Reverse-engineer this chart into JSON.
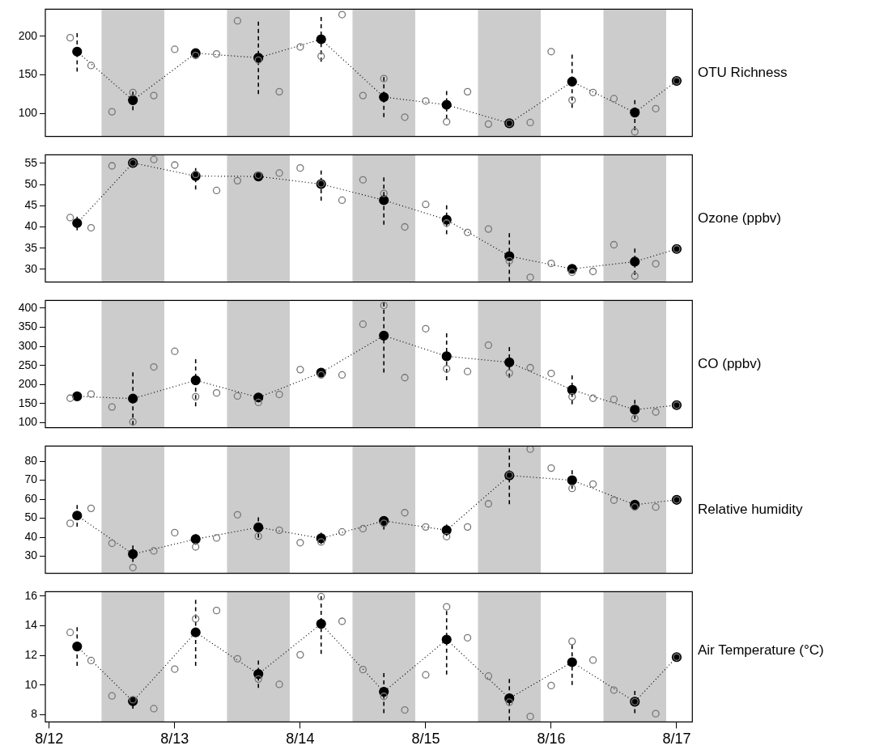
{
  "chart_data": [
    {
      "type": "scatter",
      "ylabel": "OTU Richness",
      "xlim": [
        "--08-11T23:15",
        "--08-17T03:00"
      ],
      "ylim": [
        70,
        235
      ],
      "yticks": [
        100,
        150,
        200
      ],
      "tick_labels": "y",
      "grid": false,
      "legend": false,
      "marker": "circle",
      "bands": [
        {
          "axis": "x",
          "from": "--08-12T10:00",
          "to": "--08-12T22:00",
          "color": "#cccccc"
        },
        {
          "axis": "x",
          "from": "--08-13T10:00",
          "to": "--08-13T22:00",
          "color": "#cccccc"
        },
        {
          "axis": "x",
          "from": "--08-14T10:00",
          "to": "--08-14T22:00",
          "color": "#cccccc"
        },
        {
          "axis": "x",
          "from": "--08-15T10:00",
          "to": "--08-15T22:00",
          "color": "#cccccc"
        },
        {
          "axis": "x",
          "from": "--08-16T10:00",
          "to": "--08-16T22:00",
          "color": "#cccccc"
        }
      ],
      "series": [
        {
          "type": "scatter",
          "color": "#777777",
          "x": [
            "--08-12T04:00",
            "--08-12T08:00",
            "--08-12T12:00",
            "--08-12T16:00",
            "--08-12T20:00",
            "--08-13T00:00",
            "--08-13T04:00",
            "--08-13T08:00",
            "--08-13T12:00",
            "--08-13T16:00",
            "--08-13T20:00",
            "--08-14T00:00",
            "--08-14T04:00",
            "--08-14T08:00",
            "--08-14T12:00",
            "--08-14T16:00",
            "--08-14T20:00",
            "--08-15T00:00",
            "--08-15T04:00",
            "--08-15T08:00",
            "--08-15T12:00",
            "--08-15T16:00",
            "--08-15T20:00",
            "--08-16T00:00",
            "--08-16T04:00",
            "--08-16T08:00",
            "--08-16T12:00",
            "--08-16T16:00",
            "--08-16T20:00",
            "--08-17T00:00"
          ],
          "values": [
            198,
            162,
            102,
            127,
            123,
            183,
            175,
            177,
            220,
            169,
            128,
            186,
            174,
            228,
            123,
            145,
            95,
            116,
            89,
            128,
            86,
            87,
            88,
            180,
            117,
            127,
            119,
            76,
            106,
            142
          ]
        },
        {
          "type": "line",
          "color": "#000000",
          "line_style": "dotted",
          "x": [
            "--08-12T05:20",
            "--08-12T16:00",
            "--08-13T04:00",
            "--08-13T16:00",
            "--08-14T04:00",
            "--08-14T16:00",
            "--08-15T04:00",
            "--08-15T16:00",
            "--08-16T04:00",
            "--08-16T16:00",
            "--08-17T00:00"
          ],
          "values": [
            180,
            117,
            178,
            172,
            196,
            121,
            111,
            87,
            141,
            101,
            142
          ],
          "errors": [
            [
              154,
              204
            ],
            [
              104,
              128
            ],
            null,
            [
              125,
              219
            ],
            [
              167,
              225
            ],
            [
              95,
              147
            ],
            [
              93,
              129
            ],
            null,
            [
              107,
              176
            ],
            [
              78,
              117
            ],
            null
          ]
        }
      ]
    },
    {
      "type": "scatter",
      "ylabel": "Ozone (ppbv)",
      "xlim": [
        "--08-11T23:15",
        "--08-17T03:00"
      ],
      "ylim": [
        27,
        57
      ],
      "yticks": [
        30,
        35,
        40,
        45,
        50,
        55
      ],
      "tick_labels": "y",
      "grid": false,
      "legend": false,
      "marker": "circle",
      "bands": [
        {
          "axis": "x",
          "from": "--08-12T10:00",
          "to": "--08-12T22:00",
          "color": "#cccccc"
        },
        {
          "axis": "x",
          "from": "--08-13T10:00",
          "to": "--08-13T22:00",
          "color": "#cccccc"
        },
        {
          "axis": "x",
          "from": "--08-14T10:00",
          "to": "--08-14T22:00",
          "color": "#cccccc"
        },
        {
          "axis": "x",
          "from": "--08-15T10:00",
          "to": "--08-15T22:00",
          "color": "#cccccc"
        },
        {
          "axis": "x",
          "from": "--08-16T10:00",
          "to": "--08-16T22:00",
          "color": "#cccccc"
        }
      ],
      "series": [
        {
          "type": "scatter",
          "color": "#777777",
          "x": [
            "--08-12T04:00",
            "--08-12T08:00",
            "--08-12T12:00",
            "--08-12T16:00",
            "--08-12T20:00",
            "--08-13T00:00",
            "--08-13T04:00",
            "--08-13T08:00",
            "--08-13T12:00",
            "--08-13T16:00",
            "--08-13T20:00",
            "--08-14T00:00",
            "--08-14T04:00",
            "--08-14T08:00",
            "--08-14T12:00",
            "--08-14T16:00",
            "--08-14T20:00",
            "--08-15T00:00",
            "--08-15T04:00",
            "--08-15T08:00",
            "--08-15T12:00",
            "--08-15T16:00",
            "--08-15T20:00",
            "--08-16T00:00",
            "--08-16T04:00",
            "--08-16T08:00",
            "--08-16T12:00",
            "--08-16T16:00",
            "--08-16T20:00",
            "--08-17T00:00"
          ],
          "values": [
            42.2,
            39.8,
            54.4,
            55.1,
            55.9,
            54.6,
            52.4,
            48.6,
            50.9,
            52.2,
            52.7,
            53.9,
            50.2,
            46.3,
            51.1,
            47.9,
            40,
            45.3,
            40.9,
            38.7,
            39.5,
            32,
            28.1,
            31.4,
            29.3,
            29.5,
            35.8,
            28.4,
            31.3,
            34.8
          ]
        },
        {
          "type": "line",
          "color": "#000000",
          "line_style": "dotted",
          "x": [
            "--08-12T05:20",
            "--08-12T16:00",
            "--08-13T04:00",
            "--08-13T16:00",
            "--08-14T04:00",
            "--08-14T16:00",
            "--08-15T04:00",
            "--08-15T16:00",
            "--08-16T04:00",
            "--08-16T16:00",
            "--08-17T00:00"
          ],
          "values": [
            40.9,
            55.1,
            52,
            51.9,
            50.1,
            46.3,
            41.7,
            33.1,
            30.1,
            31.8,
            34.8
          ],
          "errors": [
            [
              39.2,
              42.4
            ],
            null,
            [
              48.8,
              53.9
            ],
            null,
            [
              46.2,
              53.3
            ],
            [
              40.5,
              51.7
            ],
            [
              38.3,
              45.1
            ],
            [
              27.2,
              38.5
            ],
            [
              29.4,
              30.9
            ],
            [
              28.7,
              34.9
            ],
            null
          ]
        }
      ]
    },
    {
      "type": "scatter",
      "ylabel": "CO (ppbv)",
      "xlim": [
        "--08-11T23:15",
        "--08-17T03:00"
      ],
      "ylim": [
        87,
        420
      ],
      "yticks": [
        100,
        150,
        200,
        250,
        300,
        350,
        400
      ],
      "tick_labels": "y",
      "grid": false,
      "legend": false,
      "marker": "circle",
      "bands": [
        {
          "axis": "x",
          "from": "--08-12T10:00",
          "to": "--08-12T22:00",
          "color": "#cccccc"
        },
        {
          "axis": "x",
          "from": "--08-13T10:00",
          "to": "--08-13T22:00",
          "color": "#cccccc"
        },
        {
          "axis": "x",
          "from": "--08-14T10:00",
          "to": "--08-14T22:00",
          "color": "#cccccc"
        },
        {
          "axis": "x",
          "from": "--08-15T10:00",
          "to": "--08-15T22:00",
          "color": "#cccccc"
        },
        {
          "axis": "x",
          "from": "--08-16T10:00",
          "to": "--08-16T22:00",
          "color": "#cccccc"
        }
      ],
      "series": [
        {
          "type": "scatter",
          "color": "#777777",
          "x": [
            "--08-12T04:00",
            "--08-12T08:00",
            "--08-12T12:00",
            "--08-12T16:00",
            "--08-12T20:00",
            "--08-13T00:00",
            "--08-13T04:00",
            "--08-13T08:00",
            "--08-13T12:00",
            "--08-13T16:00",
            "--08-13T20:00",
            "--08-14T00:00",
            "--08-14T04:00",
            "--08-14T08:00",
            "--08-14T12:00",
            "--08-14T16:00",
            "--08-14T20:00",
            "--08-15T00:00",
            "--08-15T04:00",
            "--08-15T08:00",
            "--08-15T12:00",
            "--08-15T16:00",
            "--08-15T20:00",
            "--08-16T00:00",
            "--08-16T04:00",
            "--08-16T08:00",
            "--08-16T12:00",
            "--08-16T16:00",
            "--08-16T20:00",
            "--08-17T00:00"
          ],
          "values": [
            164,
            175,
            141,
            102,
            246,
            287,
            168,
            178,
            170,
            153,
            174,
            239,
            225,
            225,
            358,
            407,
            218,
            346,
            241,
            234,
            303,
            230,
            244,
            229,
            168,
            164,
            161,
            111,
            128,
            146
          ]
        },
        {
          "type": "line",
          "color": "#000000",
          "line_style": "dotted",
          "x": [
            "--08-12T05:20",
            "--08-12T16:00",
            "--08-13T04:00",
            "--08-13T16:00",
            "--08-14T04:00",
            "--08-14T16:00",
            "--08-15T04:00",
            "--08-15T16:00",
            "--08-16T04:00",
            "--08-16T16:00",
            "--08-17T00:00"
          ],
          "values": [
            169,
            163,
            211,
            166,
            231,
            328,
            274,
            258,
            186,
            134,
            146
          ],
          "errors": [
            null,
            [
              94,
              232
            ],
            [
              143,
              266
            ],
            null,
            null,
            [
              231,
              415
            ],
            [
              211,
              334
            ],
            [
              218,
              298
            ],
            [
              148,
              224
            ],
            [
              110,
              160
            ],
            null
          ]
        }
      ]
    },
    {
      "type": "scatter",
      "ylabel": "Relative humidity",
      "xlim": [
        "--08-11T23:15",
        "--08-17T03:00"
      ],
      "ylim": [
        21,
        88
      ],
      "yticks": [
        30,
        40,
        50,
        60,
        70,
        80
      ],
      "tick_labels": "y",
      "grid": false,
      "legend": false,
      "marker": "circle",
      "bands": [
        {
          "axis": "x",
          "from": "--08-12T10:00",
          "to": "--08-12T22:00",
          "color": "#cccccc"
        },
        {
          "axis": "x",
          "from": "--08-13T10:00",
          "to": "--08-13T22:00",
          "color": "#cccccc"
        },
        {
          "axis": "x",
          "from": "--08-14T10:00",
          "to": "--08-14T22:00",
          "color": "#cccccc"
        },
        {
          "axis": "x",
          "from": "--08-15T10:00",
          "to": "--08-15T22:00",
          "color": "#cccccc"
        },
        {
          "axis": "x",
          "from": "--08-16T10:00",
          "to": "--08-16T22:00",
          "color": "#cccccc"
        }
      ],
      "series": [
        {
          "type": "scatter",
          "color": "#777777",
          "x": [
            "--08-12T04:00",
            "--08-12T08:00",
            "--08-12T12:00",
            "--08-12T16:00",
            "--08-12T20:00",
            "--08-13T00:00",
            "--08-13T04:00",
            "--08-13T08:00",
            "--08-13T12:00",
            "--08-13T16:00",
            "--08-13T20:00",
            "--08-14T00:00",
            "--08-14T04:00",
            "--08-14T08:00",
            "--08-14T12:00",
            "--08-14T16:00",
            "--08-14T20:00",
            "--08-15T00:00",
            "--08-15T04:00",
            "--08-15T08:00",
            "--08-15T12:00",
            "--08-15T16:00",
            "--08-15T20:00",
            "--08-16T00:00",
            "--08-16T04:00",
            "--08-16T08:00",
            "--08-16T12:00",
            "--08-16T16:00",
            "--08-16T20:00",
            "--08-17T00:00"
          ],
          "values": [
            47.3,
            55.2,
            36.8,
            24,
            32.8,
            42.4,
            34.9,
            39.6,
            51.8,
            40.5,
            43.7,
            37.1,
            37.5,
            42.8,
            44.5,
            47.3,
            52.9,
            45.4,
            40.3,
            45.4,
            57.6,
            72.7,
            86.4,
            76.4,
            65.7,
            68,
            59.5,
            55.9,
            55.9,
            59.7
          ]
        },
        {
          "type": "line",
          "color": "#000000",
          "line_style": "dotted",
          "x": [
            "--08-12T05:20",
            "--08-12T16:00",
            "--08-13T04:00",
            "--08-13T16:00",
            "--08-14T04:00",
            "--08-14T16:00",
            "--08-15T04:00",
            "--08-15T16:00",
            "--08-16T04:00",
            "--08-16T16:00",
            "--08-17T00:00"
          ],
          "values": [
            51.4,
            31.1,
            39,
            45.2,
            39.4,
            48.6,
            43.7,
            72.5,
            70,
            57.1,
            59.7
          ],
          "errors": [
            [
              45.6,
              56.9
            ],
            [
              27,
              35.6
            ],
            [
              36,
              41.5
            ],
            [
              39.8,
              50.5
            ],
            [
              36.4,
              42.4
            ],
            [
              44.1,
              50.3
            ],
            [
              40.7,
              46.7
            ],
            [
              57.4,
              86.8
            ],
            [
              65.5,
              75.3
            ],
            null,
            null
          ]
        }
      ]
    },
    {
      "type": "scatter",
      "ylabel": "Air Temperature (°C)",
      "xlim": [
        "--08-11T23:15",
        "--08-17T03:00"
      ],
      "ylim": [
        7.5,
        16.3
      ],
      "yticks": [
        8,
        10,
        12,
        14,
        16
      ],
      "xticks": [
        {
          "value": "--08-12",
          "label": "8/12"
        },
        {
          "value": "--08-13",
          "label": "8/13"
        },
        {
          "value": "--08-14",
          "label": "8/14"
        },
        {
          "value": "--08-15",
          "label": "8/15"
        },
        {
          "value": "--08-16",
          "label": "8/16"
        },
        {
          "value": "--08-17",
          "label": "8/17"
        }
      ],
      "grid": false,
      "legend": false,
      "marker": "circle",
      "bands": [
        {
          "axis": "x",
          "from": "--08-12T10:00",
          "to": "--08-12T22:00",
          "color": "#cccccc"
        },
        {
          "axis": "x",
          "from": "--08-13T10:00",
          "to": "--08-13T22:00",
          "color": "#cccccc"
        },
        {
          "axis": "x",
          "from": "--08-14T10:00",
          "to": "--08-14T22:00",
          "color": "#cccccc"
        },
        {
          "axis": "x",
          "from": "--08-15T10:00",
          "to": "--08-15T22:00",
          "color": "#cccccc"
        },
        {
          "axis": "x",
          "from": "--08-16T10:00",
          "to": "--08-16T22:00",
          "color": "#cccccc"
        }
      ],
      "series": [
        {
          "type": "scatter",
          "color": "#777777",
          "x": [
            "--08-12T04:00",
            "--08-12T08:00",
            "--08-12T12:00",
            "--08-12T16:00",
            "--08-12T20:00",
            "--08-13T00:00",
            "--08-13T04:00",
            "--08-13T08:00",
            "--08-13T12:00",
            "--08-13T16:00",
            "--08-13T20:00",
            "--08-14T00:00",
            "--08-14T04:00",
            "--08-14T08:00",
            "--08-14T12:00",
            "--08-14T16:00",
            "--08-14T20:00",
            "--08-15T00:00",
            "--08-15T04:00",
            "--08-15T08:00",
            "--08-15T12:00",
            "--08-15T16:00",
            "--08-15T20:00",
            "--08-16T00:00",
            "--08-16T04:00",
            "--08-16T08:00",
            "--08-16T12:00",
            "--08-16T16:00",
            "--08-16T20:00",
            "--08-17T00:00"
          ],
          "values": [
            13.55,
            11.65,
            9.26,
            9,
            8.4,
            11.07,
            14.47,
            15.03,
            11.77,
            10.4,
            10.04,
            12.04,
            15.97,
            14.3,
            11.04,
            9.23,
            8.31,
            10.68,
            15.28,
            13.19,
            10.6,
            8.84,
            7.87,
            9.96,
            12.94,
            11.68,
            9.65,
            8.87,
            8.06,
            11.88
          ]
        },
        {
          "type": "line",
          "color": "#000000",
          "line_style": "dotted",
          "x": [
            "--08-12T05:20",
            "--08-12T16:00",
            "--08-13T04:00",
            "--08-13T16:00",
            "--08-14T04:00",
            "--08-14T16:00",
            "--08-15T04:00",
            "--08-15T16:00",
            "--08-16T04:00",
            "--08-16T16:00",
            "--08-17T00:00"
          ],
          "values": [
            12.6,
            8.9,
            13.55,
            10.74,
            14.13,
            9.54,
            13.07,
            9.1,
            11.54,
            8.87,
            11.88
          ],
          "errors": [
            [
              11.3,
              13.9
            ],
            [
              8.4,
              9.2
            ],
            [
              11.3,
              15.75
            ],
            [
              9.8,
              11.65
            ],
            [
              12.1,
              16
            ],
            [
              8.1,
              10.8
            ],
            [
              10.7,
              15
            ],
            [
              7.6,
              10.4
            ],
            [
              10,
              12.7
            ],
            [
              8.1,
              9.6
            ],
            null
          ]
        }
      ]
    }
  ]
}
